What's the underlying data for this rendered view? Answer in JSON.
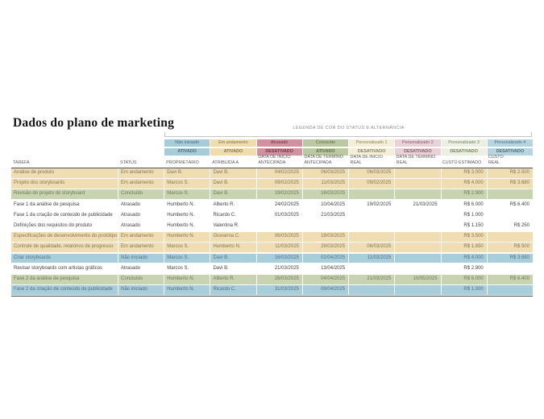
{
  "page": {
    "title": "Dados do plano de marketing"
  },
  "legend": {
    "title": "LEGENDA DE COR DO STATUS E ALTERNÂNCIA",
    "items": [
      {
        "label": "Não iniciado",
        "state": "ATIVADO",
        "color": "#a6ccda",
        "key": "nao-iniciado"
      },
      {
        "label": "Em andamento",
        "state": "ATIVADO",
        "color": "#f1dcae",
        "key": "em-andamento"
      },
      {
        "label": "Atrasado",
        "state": "DESATIVADO",
        "color": "#d2919f",
        "key": "atrasado"
      },
      {
        "label": "Concluído",
        "state": "ATIVADO",
        "color": "#bac9a2",
        "key": "concluido"
      },
      {
        "label": "Personalizado 1",
        "state": "DESATIVADO",
        "color": "#f4eeda",
        "key": "personalizado-1"
      },
      {
        "label": "Personalizado 2",
        "state": "DESATIVADO",
        "color": "#e9d1d8",
        "key": "personalizado-2"
      },
      {
        "label": "Personalizado 3",
        "state": "DESATIVADO",
        "color": "#ecf0e3",
        "key": "personalizado-3"
      },
      {
        "label": "Personalizado 4",
        "state": "DESATIVADO",
        "color": "#b7d5e1",
        "key": "personalizado-4"
      }
    ]
  },
  "table": {
    "columns": [
      {
        "key": "tarefa",
        "label": "TAREFA"
      },
      {
        "key": "status",
        "label": "STATUS"
      },
      {
        "key": "proprietario",
        "label": "PROPRIETÁRIO"
      },
      {
        "key": "atribuida-a",
        "label": "ATRIBUÍDA A"
      },
      {
        "key": "data-inicio-antecipada",
        "label": "DATA DE INÍCIO\nANTECIPADA"
      },
      {
        "key": "data-termino-antecipada",
        "label": "DATA DE TÉRMINO\nANTECIPADA"
      },
      {
        "key": "data-inicio-real",
        "label": "DATA DE INÍCIO\nREAL"
      },
      {
        "key": "data-termino-real",
        "label": "DATA DE TÉRMINO\nREAL"
      },
      {
        "key": "custo-estimado",
        "label": "CUSTO ESTIMADO"
      },
      {
        "key": "custo-real",
        "label": "CUSTO\nREAL"
      }
    ],
    "rows": [
      {
        "status_key": "em-andamento",
        "cells": [
          "Análise de produto",
          "Em andamento",
          "Davi B.",
          "Davi B.",
          "04/02/2025",
          "06/03/2025",
          "06/03/2025",
          "",
          "R$ 3.000",
          "R$ 2.500"
        ]
      },
      {
        "status_key": "em-andamento",
        "cells": [
          "Projeto dos storyboards",
          "Em andamento",
          "Marcos S.",
          "Davi B.",
          "09/02/2025",
          "11/03/2025",
          "09/02/2025",
          "",
          "R$ 4.000",
          "R$ 3.680"
        ]
      },
      {
        "status_key": "concluido",
        "cells": [
          "Revisão do projeto do storyboard",
          "Concluído",
          "Marcos S.",
          "Davi B.",
          "19/02/2025",
          "16/03/2025",
          "",
          "",
          "R$ 2.900",
          ""
        ]
      },
      {
        "status_key": "atrasado",
        "cells": [
          "Fase 1 da análise de pesquisa",
          "Atrasado",
          "Humberto N.",
          "Alberto R.",
          "24/02/2025",
          "10/04/2025",
          "19/02/2025",
          "21/03/2025",
          "R$ 6.000",
          "R$ 6.400"
        ]
      },
      {
        "status_key": "atrasado",
        "cells": [
          "Fase 1 da criação de conteúdo de publicidade",
          "Atrasado",
          "Humberto N.",
          "Ricardo C.",
          "01/03/2025",
          "21/03/2025",
          "",
          "",
          "R$ 1.000",
          ""
        ]
      },
      {
        "status_key": "atrasado",
        "cells": [
          "Definições dos requisitos do produto",
          "Atrasado",
          "Humberto N.",
          "Valentina R.",
          "",
          "",
          "",
          "",
          "R$ 1.150",
          "R$ 250"
        ]
      },
      {
        "status_key": "em-andamento",
        "cells": [
          "Especificações de desenvolvimento do protótipo",
          "Em andamento",
          "Humberto N.",
          "Giovanna C.",
          "06/03/2025",
          "18/03/2025",
          "",
          "",
          "R$ 3.500",
          ""
        ]
      },
      {
        "status_key": "em-andamento",
        "cells": [
          "Controle de qualidade, relatórios de progresso",
          "Em andamento",
          "Marcos S.",
          "Humberto N.",
          "11/03/2025",
          "29/03/2025",
          "06/03/2025",
          "",
          "R$ 1.850",
          "R$ 500"
        ]
      },
      {
        "status_key": "nao-iniciado",
        "cells": [
          "Criar storyboards",
          "Não iniciado",
          "Marcos S.",
          "Davi B.",
          "16/03/2025",
          "02/04/2025",
          "11/03/2025",
          "",
          "R$ 4.000",
          "R$ 3.680"
        ]
      },
      {
        "status_key": "atrasado",
        "cells": [
          "Revisar storyboards com artistas gráficos",
          "Atrasado",
          "Marcos S.",
          "Davi B.",
          "21/03/2025",
          "13/04/2025",
          "",
          "",
          "R$ 2.900",
          ""
        ]
      },
      {
        "status_key": "concluido",
        "cells": [
          "Fase 2 da análise de pesquisa",
          "Concluído",
          "Humberto N.",
          "Alberto R.",
          "26/03/2025",
          "04/04/2025",
          "21/03/2025",
          "10/05/2025",
          "R$ 6.000",
          "R$ 6.400"
        ]
      },
      {
        "status_key": "nao-iniciado",
        "cells": [
          "Fase 2 da criação de conteúdo de publicidade",
          "Não iniciado",
          "Humberto N.",
          "Ricardo C.",
          "31/03/2025",
          "09/04/2025",
          "",
          "",
          "R$ 1.000",
          ""
        ]
      }
    ]
  }
}
